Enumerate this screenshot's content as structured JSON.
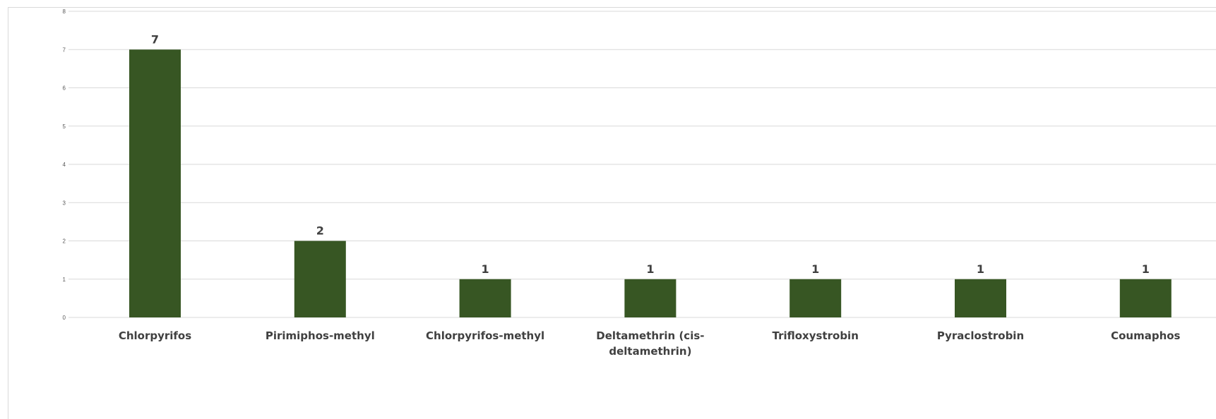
{
  "chart_data": {
    "type": "bar",
    "title": "",
    "xlabel": "",
    "ylabel": "",
    "categories": [
      "Chlorpyrifos",
      "Pirimiphos-methyl",
      "Chlorpyrifos-methyl",
      "Deltamethrin (cis-deltamethrin)",
      "Trifloxystrobin",
      "Pyraclostrobin",
      "Coumaphos"
    ],
    "category_lines": [
      [
        "Chlorpyrifos"
      ],
      [
        "Pirimiphos-methyl"
      ],
      [
        "Chlorpyrifos-methyl"
      ],
      [
        "Deltamethrin (cis-",
        "deltamethrin)"
      ],
      [
        "Trifloxystrobin"
      ],
      [
        "Pyraclostrobin"
      ],
      [
        "Coumaphos"
      ]
    ],
    "values": [
      7,
      2,
      1,
      1,
      1,
      1,
      1
    ],
    "ylim": [
      0,
      8
    ],
    "yticks": [
      0,
      1,
      2,
      3,
      4,
      5,
      6,
      7,
      8
    ],
    "grid": true,
    "legend": "none",
    "data_labels": true,
    "bar_color": "#375623",
    "grid_color": "#d9d9d9"
  }
}
